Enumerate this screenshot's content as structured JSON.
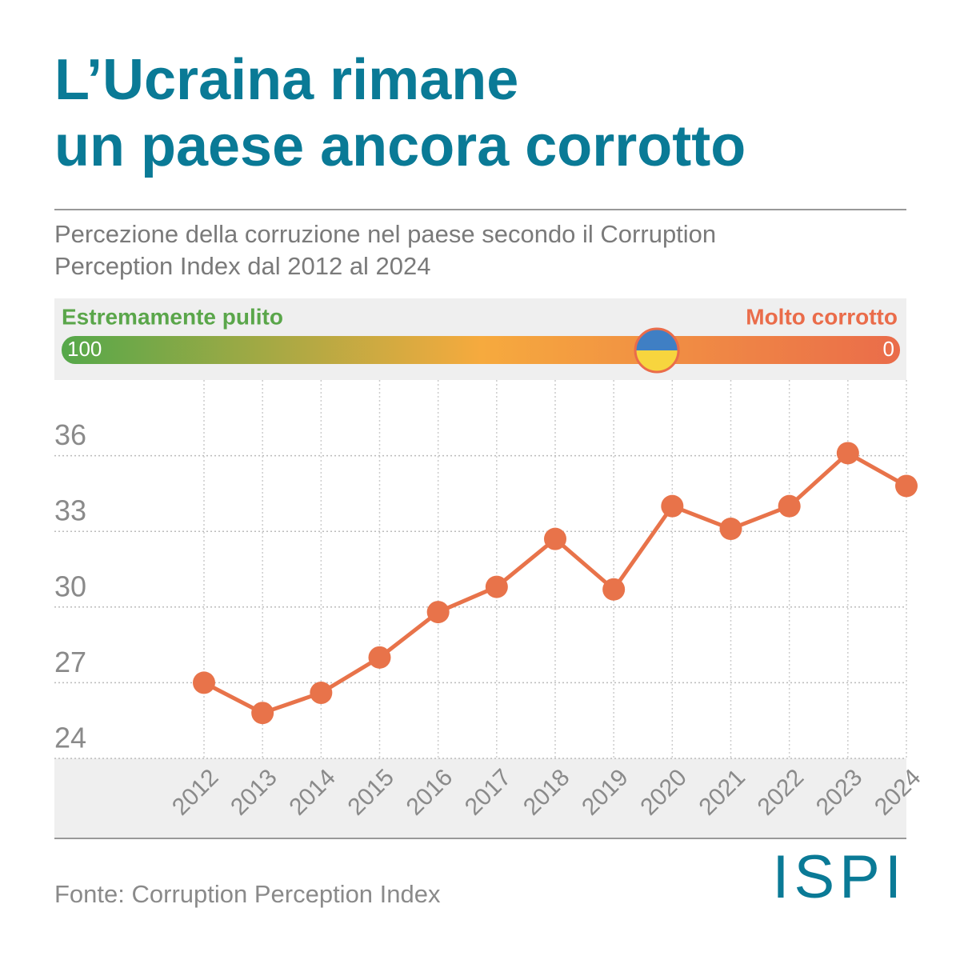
{
  "chart_data": {
    "type": "line",
    "title_lines": [
      "L’Ucraina rimane",
      "un paese ancora corrotto"
    ],
    "subtitle_lines": [
      "Percezione della corruzione nel paese secondo il Corruption",
      "Perception Index dal 2012 al 2024"
    ],
    "scale": {
      "left_label": "Estremamente pulito",
      "right_label": "Molto corrotto",
      "left_value": 100,
      "right_value": 0,
      "marker": 29
    },
    "categories": [
      "2012",
      "2013",
      "2014",
      "2015",
      "2016",
      "2017",
      "2018",
      "2019",
      "2020",
      "2021",
      "2022",
      "2023",
      "2024"
    ],
    "series": [
      {
        "name": "Ucraina",
        "color": "#e8734a",
        "values": [
          27,
          25.8,
          26.6,
          28,
          29.8,
          30.8,
          32.7,
          30.7,
          34,
          33.1,
          34,
          36.1,
          34.8
        ]
      }
    ],
    "ylim": [
      24,
      39
    ],
    "yticks": [
      24,
      27,
      30,
      33,
      36
    ],
    "grid": true,
    "source": "Fonte: Corruption Perception Index",
    "logo": "ISPI"
  }
}
